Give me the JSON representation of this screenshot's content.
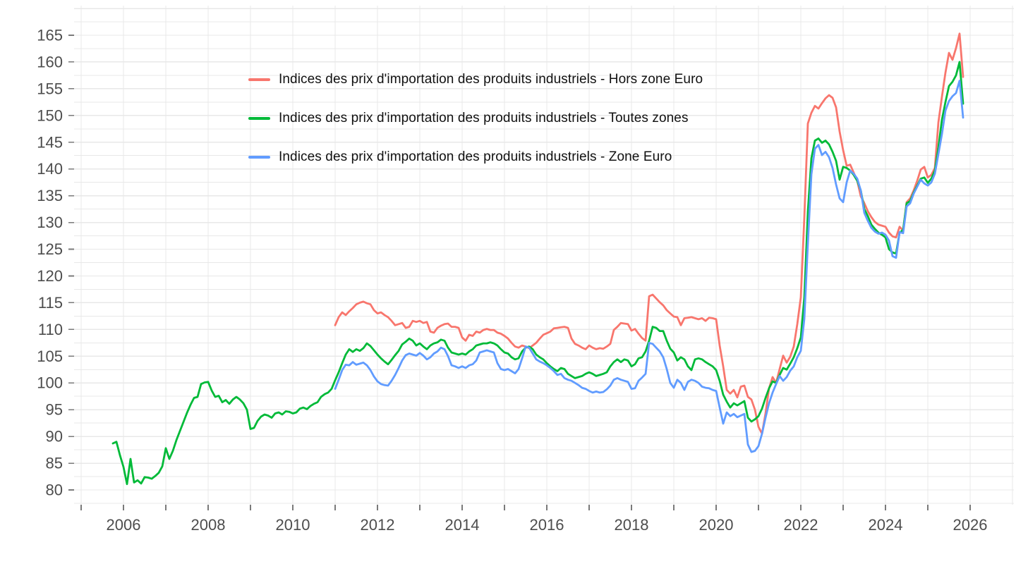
{
  "chart_data": {
    "type": "line",
    "title": "",
    "xlabel": "",
    "ylabel": "",
    "grid": "on",
    "legend_position": "inside-top-left",
    "x_axis": {
      "tick_labels": [
        2006,
        2008,
        2010,
        2012,
        2014,
        2016,
        2018,
        2020,
        2022,
        2024,
        2026
      ],
      "minor_tick_years_step": 1,
      "year_start": 2005,
      "year_end": 2027,
      "range": [
        2004.85,
        2026.05
      ]
    },
    "y_axis": {
      "tick_labels": [
        80,
        85,
        90,
        95,
        100,
        105,
        110,
        115,
        120,
        125,
        130,
        135,
        140,
        145,
        150,
        155,
        160,
        165
      ],
      "gridline_step": 2.5,
      "range": [
        77.2,
        169.5
      ]
    },
    "series": [
      {
        "name": "Indices des prix d'importation des produits industriels - Hors zone Euro",
        "color": "#F8766D",
        "start_year": 2011,
        "start_month": 1,
        "values": [
          110.8,
          112.3,
          113.2,
          112.7,
          113.4,
          114.0,
          114.7,
          115.0,
          115.2,
          114.9,
          114.7,
          113.6,
          113.0,
          113.2,
          112.7,
          112.3,
          111.6,
          110.8,
          111.0,
          111.2,
          110.3,
          110.5,
          111.6,
          111.4,
          111.6,
          111.2,
          111.4,
          109.6,
          109.4,
          110.3,
          110.7,
          111.0,
          111.1,
          110.5,
          110.5,
          110.3,
          108.5,
          107.9,
          109.0,
          108.8,
          109.6,
          109.4,
          109.9,
          110.1,
          109.9,
          109.9,
          109.4,
          109.2,
          108.8,
          108.3,
          107.5,
          106.8,
          106.6,
          107.0,
          106.8,
          106.5,
          107.0,
          107.5,
          108.3,
          109.0,
          109.3,
          109.6,
          110.2,
          110.3,
          110.4,
          110.5,
          110.3,
          108.3,
          107.3,
          107.0,
          106.6,
          106.3,
          107.0,
          106.6,
          106.3,
          106.5,
          106.4,
          106.8,
          107.3,
          109.9,
          110.5,
          111.2,
          111.1,
          111.0,
          109.8,
          110.1,
          109.2,
          108.4,
          107.9,
          116.2,
          116.5,
          115.8,
          115.1,
          114.5,
          113.6,
          113.0,
          112.4,
          112.3,
          110.8,
          112.1,
          112.2,
          112.3,
          112.1,
          111.9,
          112.1,
          111.6,
          112.2,
          112.1,
          111.9,
          107.0,
          103.1,
          98.7,
          98.0,
          98.7,
          97.3,
          99.3,
          99.5,
          97.4,
          96.9,
          95.0,
          91.8,
          90.5,
          94.3,
          99.0,
          101.1,
          100.0,
          102.6,
          105.1,
          103.8,
          104.9,
          106.8,
          111.0,
          116.0,
          131.0,
          148.5,
          150.5,
          151.8,
          151.3,
          152.3,
          153.2,
          153.8,
          153.3,
          151.5,
          147.0,
          143.5,
          140.6,
          140.8,
          139.3,
          137.8,
          134.9,
          133.6,
          132.1,
          131.0,
          130.1,
          129.6,
          129.4,
          129.2,
          128.1,
          127.4,
          127.2,
          129.2,
          128.5,
          133.8,
          134.5,
          136.0,
          137.8,
          139.9,
          140.4,
          138.4,
          138.9,
          140.2,
          148.7,
          153.5,
          158.0,
          161.7,
          160.4,
          162.6,
          165.3,
          157.2
        ]
      },
      {
        "name": "Indices des prix d'importation des produits industriels - Toutes zones",
        "color": "#00BA38",
        "start_year": 2005,
        "start_month": 10,
        "values": [
          88.7,
          89.0,
          86.5,
          84.3,
          81.1,
          85.8,
          81.4,
          81.8,
          81.2,
          82.4,
          82.3,
          82.1,
          82.6,
          83.2,
          84.4,
          87.8,
          85.8,
          87.3,
          89.3,
          91.0,
          92.7,
          94.4,
          95.9,
          97.2,
          97.4,
          99.8,
          100.1,
          100.2,
          98.6,
          97.4,
          97.6,
          96.4,
          96.8,
          96.1,
          96.9,
          97.4,
          96.9,
          96.2,
          95.0,
          91.4,
          91.6,
          92.9,
          93.7,
          94.1,
          93.9,
          93.5,
          94.3,
          94.5,
          94.1,
          94.7,
          94.6,
          94.3,
          94.5,
          95.2,
          95.4,
          95.1,
          95.7,
          96.1,
          96.4,
          97.4,
          97.9,
          98.2,
          98.9,
          100.5,
          102.0,
          103.7,
          105.3,
          106.3,
          105.8,
          106.3,
          106.0,
          106.5,
          107.4,
          106.9,
          106.1,
          105.3,
          104.6,
          104.0,
          103.5,
          104.3,
          105.2,
          106.0,
          107.2,
          107.7,
          108.3,
          107.9,
          107.0,
          107.4,
          106.8,
          106.3,
          107.0,
          107.4,
          107.6,
          108.1,
          107.9,
          106.6,
          105.7,
          105.5,
          105.3,
          105.5,
          105.3,
          105.9,
          106.3,
          107.0,
          107.2,
          107.4,
          107.4,
          107.6,
          107.4,
          107.0,
          106.3,
          105.7,
          105.5,
          104.8,
          104.4,
          104.6,
          105.9,
          106.6,
          106.8,
          106.3,
          105.3,
          104.8,
          104.4,
          103.7,
          103.1,
          102.6,
          102.2,
          102.8,
          102.6,
          101.7,
          101.3,
          100.9,
          101.1,
          101.3,
          101.7,
          102.0,
          101.7,
          101.3,
          101.5,
          101.7,
          102.0,
          103.1,
          103.9,
          104.4,
          103.9,
          104.4,
          104.2,
          103.1,
          103.5,
          104.6,
          104.8,
          105.9,
          107.9,
          110.5,
          110.3,
          109.7,
          109.7,
          107.9,
          106.4,
          105.7,
          104.2,
          104.8,
          104.4,
          103.1,
          102.4,
          104.4,
          104.6,
          104.4,
          103.9,
          103.5,
          103.1,
          102.4,
          100.4,
          97.8,
          96.5,
          95.4,
          96.2,
          95.8,
          96.2,
          96.6,
          93.5,
          92.8,
          93.2,
          93.8,
          95.2,
          97.2,
          99.0,
          100.3,
          100.0,
          101.5,
          102.8,
          102.5,
          103.6,
          104.8,
          106.5,
          108.5,
          116.0,
          132.0,
          142.0,
          145.3,
          145.7,
          144.9,
          145.3,
          144.6,
          143.2,
          141.5,
          138.0,
          140.4,
          140.2,
          139.7,
          138.9,
          137.8,
          136.0,
          132.5,
          131.2,
          129.6,
          128.8,
          128.1,
          127.7,
          127.2,
          125.0,
          124.4,
          124.2,
          128.1,
          128.6,
          133.6,
          134.0,
          135.6,
          136.9,
          138.2,
          138.4,
          137.4,
          138.2,
          139.7,
          144.0,
          149.2,
          152.5,
          155.5,
          156.3,
          157.5,
          160.0,
          152.2
        ]
      },
      {
        "name": "Indices des prix d'importation des produits industriels - Zone Euro",
        "color": "#619CFF",
        "start_year": 2011,
        "start_month": 1,
        "values": [
          98.9,
          100.6,
          102.4,
          103.4,
          103.3,
          103.9,
          103.4,
          103.6,
          103.8,
          103.3,
          102.4,
          101.2,
          100.3,
          99.8,
          99.6,
          99.5,
          100.4,
          101.5,
          102.8,
          104.2,
          105.2,
          105.5,
          105.3,
          105.1,
          105.6,
          105.1,
          104.4,
          104.8,
          105.5,
          105.9,
          106.6,
          106.3,
          105.0,
          103.3,
          103.1,
          102.8,
          103.1,
          102.8,
          103.3,
          103.5,
          104.2,
          105.7,
          105.9,
          106.1,
          105.9,
          105.7,
          103.7,
          102.6,
          102.4,
          102.6,
          102.2,
          101.8,
          102.6,
          104.6,
          106.8,
          106.6,
          105.5,
          104.4,
          104.0,
          103.7,
          103.3,
          102.8,
          102.2,
          101.5,
          101.7,
          100.9,
          100.6,
          100.4,
          100.0,
          99.6,
          99.1,
          98.9,
          98.5,
          98.2,
          98.4,
          98.2,
          98.3,
          98.8,
          99.5,
          100.6,
          100.9,
          100.6,
          100.4,
          100.2,
          98.9,
          99.0,
          100.4,
          101.0,
          101.7,
          107.5,
          107.3,
          106.6,
          105.9,
          104.8,
          102.6,
          100.0,
          99.1,
          100.6,
          100.0,
          98.7,
          100.2,
          100.6,
          100.4,
          100.0,
          99.3,
          99.1,
          99.0,
          98.7,
          98.5,
          95.4,
          92.4,
          94.5,
          93.8,
          94.2,
          93.6,
          93.9,
          94.2,
          88.5,
          87.1,
          87.3,
          88.2,
          90.5,
          93.5,
          96.2,
          98.2,
          99.8,
          101.3,
          100.4,
          101.1,
          102.3,
          103.1,
          104.8,
          106.0,
          112.0,
          126.0,
          139.0,
          143.8,
          144.5,
          142.6,
          143.2,
          142.2,
          140.2,
          137.1,
          134.5,
          133.8,
          137.5,
          139.7,
          139.1,
          138.2,
          136.0,
          131.8,
          130.3,
          129.0,
          128.3,
          127.9,
          128.1,
          127.7,
          126.6,
          123.7,
          123.4,
          128.2,
          128.0,
          133.0,
          133.6,
          135.4,
          136.7,
          138.0,
          137.3,
          136.9,
          137.5,
          139.1,
          142.8,
          146.5,
          150.9,
          152.7,
          153.6,
          154.2,
          156.5,
          149.6
        ]
      }
    ]
  },
  "style": {
    "gridline_color": "#E8E8E8",
    "tick_color": "#7a7a7a",
    "axis_text_color": "#4d4d4d",
    "legend_text_color": "#111111",
    "background": "#ffffff"
  }
}
